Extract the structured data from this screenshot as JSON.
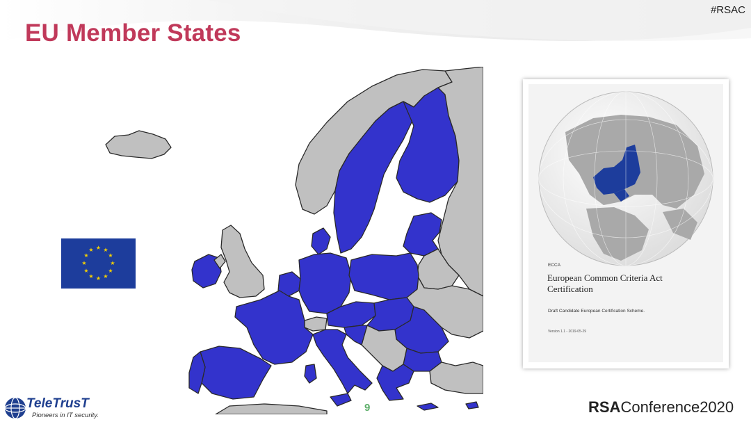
{
  "slide": {
    "hashtag": "#RSAC",
    "title": "EU Member States",
    "page_number": "9"
  },
  "document_cover": {
    "kicker": "ECCA",
    "title": "European Common Criteria Act Certification",
    "subtitle": "Draft Candidate European Certification Scheme.",
    "version": "Version 1.1 - 2019-05-29"
  },
  "footer": {
    "org_name": "TeleTrusT",
    "org_tagline": "Pioneers in IT security.",
    "conference_brand": "RSA",
    "conference_name": "Conference2020"
  },
  "colors": {
    "title": "#c0395a",
    "eu_member": "#3333cc",
    "non_member": "#c0c0c0",
    "flag_blue": "#1d3d9c",
    "flag_star": "#f5d000",
    "page_number": "#5daf6a"
  },
  "icons": [
    "eu-flag",
    "europe-map",
    "globe",
    "teletrust-logo"
  ]
}
